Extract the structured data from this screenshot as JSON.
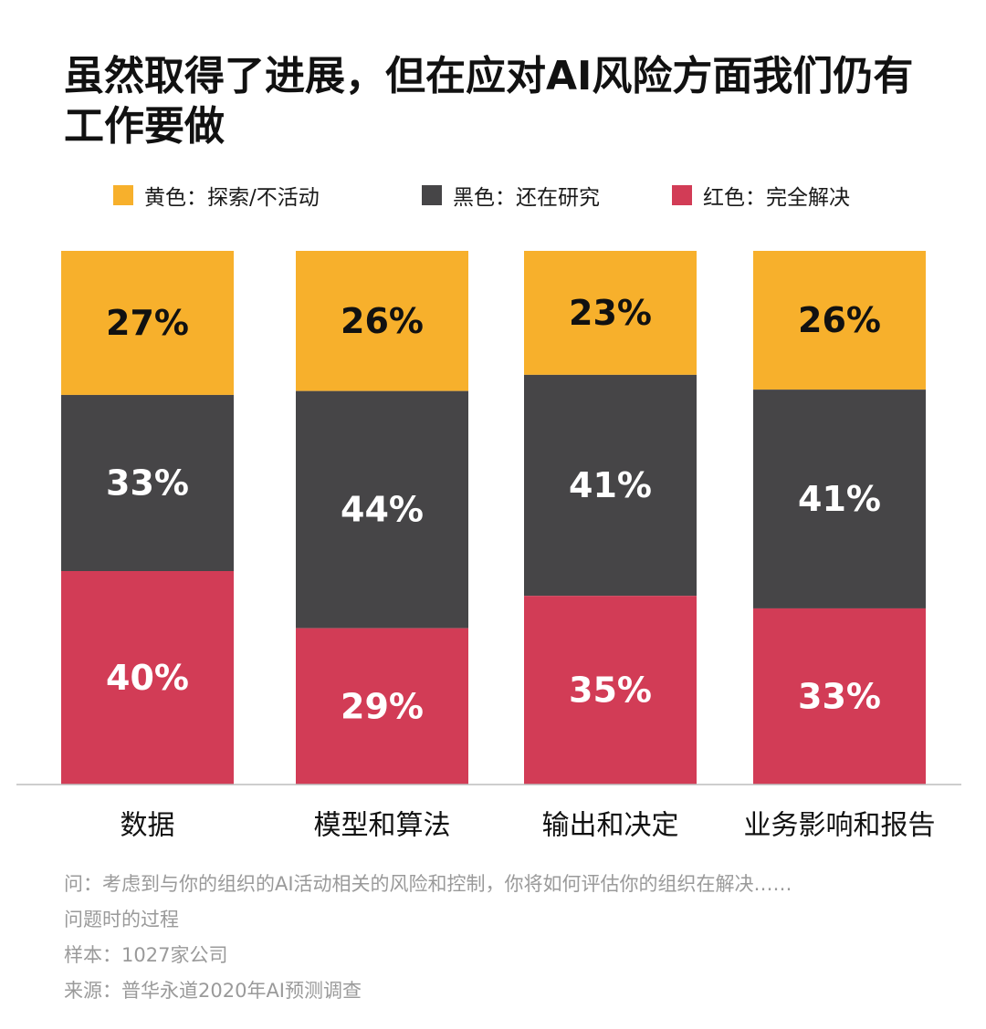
{
  "title_line1": "虽然取得了进展，但在应对AI风险方面我们仍有",
  "title_line2": "工作要做",
  "legend": [
    {
      "label": "黄色：探索/不活动",
      "color": "#F7B02C"
    },
    {
      "label": "黑色：还在研究",
      "color": "#464547"
    },
    {
      "label": "红色：完全解决",
      "color": "#D23C56"
    }
  ],
  "chart_data": {
    "type": "bar",
    "stacked": true,
    "categories": [
      "数据",
      "模型和算法",
      "输出和决定",
      "业务影响和报告"
    ],
    "series": [
      {
        "name": "黄色：探索/不活动",
        "color": "#F7B02C",
        "label_color": "#111111",
        "values": [
          27,
          26,
          23,
          26
        ],
        "labels": [
          "27%",
          "26%",
          "23%",
          "26%"
        ]
      },
      {
        "name": "黑色：还在研究",
        "color": "#464547",
        "label_color": "#ffffff",
        "values": [
          33,
          44,
          41,
          41
        ],
        "labels": [
          "33%",
          "44%",
          "41%",
          "41%"
        ]
      },
      {
        "name": "红色：完全解决",
        "color": "#D23C56",
        "label_color": "#ffffff",
        "values": [
          40,
          29,
          35,
          33
        ],
        "labels": [
          "40%",
          "29%",
          "35%",
          "33%"
        ]
      }
    ],
    "ylim": [
      0,
      100
    ],
    "grid": false,
    "legend_position": "top"
  },
  "notes": {
    "question_line1": "问：考虑到与你的组织的AI活动相关的风险和控制，你将如何评估你的组织在解决……",
    "question_line2": "问题时的过程",
    "sample": "样本：1027家公司",
    "source": "来源：普华永道2020年AI预测调查"
  }
}
